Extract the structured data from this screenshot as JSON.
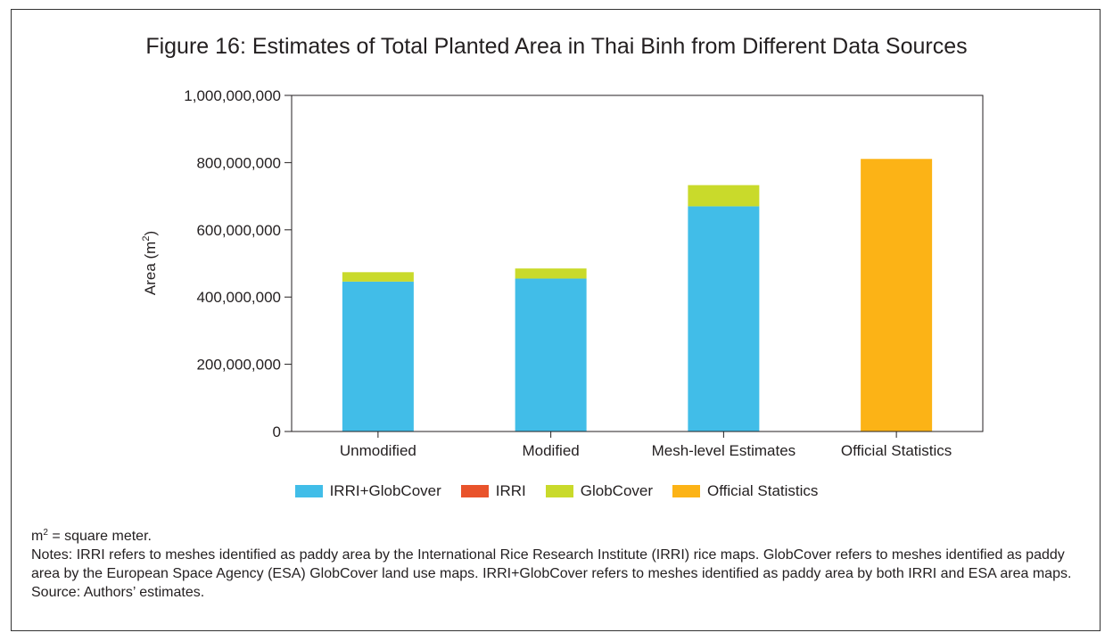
{
  "title": "Figure 16: Estimates of Total Planted Area in Thai Binh from Different Data Sources",
  "chart_data": {
    "type": "bar",
    "stacked": true,
    "title": "Figure 16: Estimates of Total Planted Area in Thai Binh from Different Data Sources",
    "ylabel_prefix": "Area (m",
    "ylabel_sup": "2",
    "ylabel_suffix": ")",
    "xlabel": "",
    "ylim": [
      0,
      1000000000
    ],
    "yticks": [
      0,
      200000000,
      400000000,
      600000000,
      800000000,
      1000000000
    ],
    "ytick_labels": [
      "0",
      "200,000,000",
      "400,000,000",
      "600,000,000",
      "800,000,000",
      "1,000,000,000"
    ],
    "categories": [
      "Unmodified",
      "Modified",
      "Mesh-level Estimates",
      "Official Statistics"
    ],
    "series": [
      {
        "name": "IRRI+GlobCover",
        "color": "#41bde8",
        "values": [
          446000000,
          455000000,
          670000000,
          0
        ]
      },
      {
        "name": "IRRI",
        "color": "#e9532b",
        "values": [
          0,
          0,
          0,
          0
        ]
      },
      {
        "name": "GlobCover",
        "color": "#c9da2b",
        "values": [
          28000000,
          30000000,
          63000000,
          0
        ]
      },
      {
        "name": "Official Statistics",
        "color": "#fcb316",
        "values": [
          0,
          0,
          0,
          811000000
        ]
      }
    ],
    "grid": false,
    "legend_position": "bottom"
  },
  "notes": {
    "unit_base": "m",
    "unit_sup": "2",
    "unit_def": " = square meter.",
    "notes_text": "Notes: IRRI refers to meshes identified as paddy area by the International Rice Research Institute (IRRI) rice maps. GlobCover refers to meshes identified as paddy area by the European Space Agency (ESA) GlobCover land use maps. IRRI+GlobCover refers to meshes identified as paddy area by both IRRI and ESA area maps.",
    "source": "Source: Authors’ estimates."
  }
}
